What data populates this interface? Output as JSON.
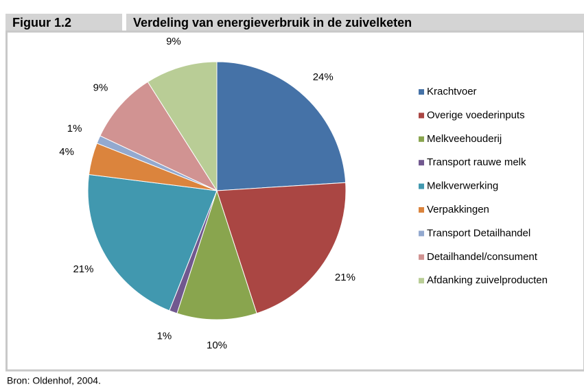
{
  "figure_label": "Figuur 1.2",
  "source": "Bron: Oldenhof, 2004.",
  "chart_data": {
    "type": "pie",
    "title": "Verdeling van energieverbruik in de zuivelketen",
    "categories": [
      "Krachtvoer",
      "Overige voederinputs",
      "Melkveehouderij",
      "Transport rauwe melk",
      "Melkverwerking",
      "Verpakkingen",
      "Transport Detailhandel",
      "Detailhandel/consument",
      "Afdanking zuivelproducten"
    ],
    "values": [
      24,
      21,
      10,
      1,
      21,
      4,
      1,
      9,
      9
    ],
    "value_labels": [
      "24%",
      "21%",
      "10%",
      "1%",
      "21%",
      "4%",
      "1%",
      "9%",
      "9%"
    ],
    "colors": [
      "#4572a7",
      "#aa4643",
      "#89a54e",
      "#71588f",
      "#4198af",
      "#db843d",
      "#93a9cf",
      "#d19392",
      "#b9cd96"
    ],
    "legend": "right"
  }
}
